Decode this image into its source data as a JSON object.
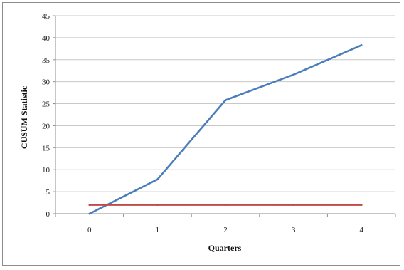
{
  "chart_data": {
    "type": "line",
    "xlabel": "Quarters",
    "ylabel": "CUSUM Statistic",
    "x": [
      0,
      1,
      2,
      3,
      4
    ],
    "xlim": [
      -0.5,
      4.5
    ],
    "ylim": [
      0,
      45
    ],
    "y_ticks": [
      0,
      5,
      10,
      15,
      20,
      25,
      30,
      35,
      40,
      45
    ],
    "x_ticks": [
      0,
      1,
      2,
      3,
      4
    ],
    "grid": "horizontal",
    "legend": "none",
    "series": [
      {
        "values": [
          0,
          7.8,
          25.8,
          31.6,
          38.3
        ],
        "color": "#4a7ebb"
      },
      {
        "values": [
          2,
          2,
          2,
          2,
          2
        ],
        "color": "#be4b48"
      }
    ]
  }
}
